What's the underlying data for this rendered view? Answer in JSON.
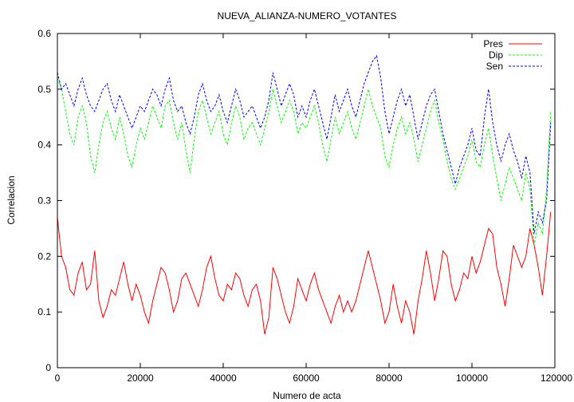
{
  "chart_data": {
    "type": "line",
    "title": "NUEVA_ALIANZA-NUMERO_VOTANTES",
    "xlabel": "Numero de acta",
    "ylabel": "Correlacion",
    "xlim": [
      0,
      120000
    ],
    "ylim": [
      0,
      0.6
    ],
    "xticks": [
      0,
      20000,
      40000,
      60000,
      80000,
      100000,
      120000
    ],
    "yticks": [
      0,
      0.1,
      0.2,
      0.3,
      0.4,
      0.5,
      0.6
    ],
    "xtick_labels": [
      "0",
      "20000",
      "40000",
      "60000",
      "80000",
      "100000",
      "120000"
    ],
    "ytick_labels": [
      "0",
      "0.1",
      "0.2",
      "0.3",
      "0.4",
      "0.5",
      "0.6"
    ],
    "grid": false,
    "legend_position": "top-right",
    "series": [
      {
        "name": "Pres",
        "color": "#ff0000",
        "dash": "solid",
        "x": [
          0,
          1000,
          2000,
          3000,
          4000,
          5000,
          6000,
          7000,
          8000,
          9000,
          10000,
          11000,
          12000,
          13000,
          14000,
          15000,
          16000,
          17000,
          18000,
          19000,
          20000,
          21000,
          22000,
          23000,
          24000,
          25000,
          26000,
          27000,
          28000,
          29000,
          30000,
          31000,
          32000,
          33000,
          34000,
          35000,
          36000,
          37000,
          38000,
          39000,
          40000,
          41000,
          42000,
          43000,
          44000,
          45000,
          46000,
          47000,
          48000,
          49000,
          50000,
          51000,
          52000,
          53000,
          54000,
          55000,
          56000,
          57000,
          58000,
          59000,
          60000,
          61000,
          62000,
          63000,
          64000,
          65000,
          66000,
          67000,
          68000,
          69000,
          70000,
          71000,
          72000,
          73000,
          74000,
          75000,
          76000,
          77000,
          78000,
          79000,
          80000,
          81000,
          82000,
          83000,
          84000,
          85000,
          86000,
          87000,
          88000,
          89000,
          90000,
          91000,
          92000,
          93000,
          94000,
          95000,
          96000,
          97000,
          98000,
          99000,
          100000,
          101000,
          102000,
          103000,
          104000,
          105000,
          106000,
          107000,
          108000,
          109000,
          110000,
          111000,
          112000,
          113000,
          114000,
          115000,
          116000,
          117000,
          118000,
          119000
        ],
        "y": [
          0.27,
          0.2,
          0.18,
          0.14,
          0.13,
          0.17,
          0.19,
          0.14,
          0.15,
          0.21,
          0.12,
          0.09,
          0.11,
          0.14,
          0.13,
          0.16,
          0.19,
          0.15,
          0.12,
          0.15,
          0.13,
          0.1,
          0.08,
          0.12,
          0.15,
          0.18,
          0.17,
          0.14,
          0.1,
          0.12,
          0.16,
          0.17,
          0.15,
          0.13,
          0.11,
          0.14,
          0.18,
          0.2,
          0.16,
          0.13,
          0.12,
          0.15,
          0.14,
          0.17,
          0.16,
          0.13,
          0.11,
          0.14,
          0.15,
          0.12,
          0.06,
          0.09,
          0.18,
          0.16,
          0.13,
          0.1,
          0.08,
          0.11,
          0.16,
          0.14,
          0.12,
          0.15,
          0.17,
          0.14,
          0.12,
          0.1,
          0.08,
          0.11,
          0.13,
          0.1,
          0.12,
          0.1,
          0.12,
          0.15,
          0.18,
          0.21,
          0.18,
          0.15,
          0.12,
          0.08,
          0.1,
          0.15,
          0.11,
          0.08,
          0.12,
          0.1,
          0.06,
          0.12,
          0.16,
          0.21,
          0.17,
          0.12,
          0.16,
          0.21,
          0.2,
          0.15,
          0.12,
          0.14,
          0.17,
          0.16,
          0.2,
          0.17,
          0.19,
          0.22,
          0.25,
          0.24,
          0.18,
          0.15,
          0.11,
          0.16,
          0.22,
          0.2,
          0.18,
          0.2,
          0.25,
          0.22,
          0.18,
          0.13,
          0.2,
          0.28
        ]
      },
      {
        "name": "Dip",
        "color": "#00ff00",
        "dash": "dashed",
        "x": [
          0,
          1000,
          2000,
          3000,
          4000,
          5000,
          6000,
          7000,
          8000,
          9000,
          10000,
          11000,
          12000,
          13000,
          14000,
          15000,
          16000,
          17000,
          18000,
          19000,
          20000,
          21000,
          22000,
          23000,
          24000,
          25000,
          26000,
          27000,
          28000,
          29000,
          30000,
          31000,
          32000,
          33000,
          34000,
          35000,
          36000,
          37000,
          38000,
          39000,
          40000,
          41000,
          42000,
          43000,
          44000,
          45000,
          46000,
          47000,
          48000,
          49000,
          50000,
          51000,
          52000,
          53000,
          54000,
          55000,
          56000,
          57000,
          58000,
          59000,
          60000,
          61000,
          62000,
          63000,
          64000,
          65000,
          66000,
          67000,
          68000,
          69000,
          70000,
          71000,
          72000,
          73000,
          74000,
          75000,
          76000,
          77000,
          78000,
          79000,
          80000,
          81000,
          82000,
          83000,
          84000,
          85000,
          86000,
          87000,
          88000,
          89000,
          90000,
          91000,
          92000,
          93000,
          94000,
          95000,
          96000,
          97000,
          98000,
          99000,
          100000,
          101000,
          102000,
          103000,
          104000,
          105000,
          106000,
          107000,
          108000,
          109000,
          110000,
          111000,
          112000,
          113000,
          114000,
          115000,
          116000,
          117000,
          118000,
          119000
        ],
        "y": [
          0.52,
          0.5,
          0.46,
          0.42,
          0.4,
          0.45,
          0.47,
          0.44,
          0.38,
          0.35,
          0.4,
          0.44,
          0.46,
          0.43,
          0.41,
          0.45,
          0.42,
          0.38,
          0.36,
          0.4,
          0.43,
          0.41,
          0.44,
          0.47,
          0.45,
          0.43,
          0.47,
          0.48,
          0.44,
          0.41,
          0.44,
          0.39,
          0.35,
          0.41,
          0.46,
          0.48,
          0.45,
          0.42,
          0.44,
          0.46,
          0.42,
          0.4,
          0.44,
          0.47,
          0.45,
          0.41,
          0.43,
          0.44,
          0.42,
          0.4,
          0.43,
          0.46,
          0.5,
          0.47,
          0.44,
          0.46,
          0.48,
          0.46,
          0.42,
          0.44,
          0.43,
          0.45,
          0.47,
          0.44,
          0.4,
          0.37,
          0.41,
          0.45,
          0.42,
          0.44,
          0.46,
          0.43,
          0.41,
          0.44,
          0.47,
          0.5,
          0.47,
          0.45,
          0.43,
          0.38,
          0.36,
          0.4,
          0.43,
          0.45,
          0.42,
          0.44,
          0.41,
          0.37,
          0.4,
          0.43,
          0.46,
          0.48,
          0.44,
          0.41,
          0.37,
          0.34,
          0.32,
          0.34,
          0.36,
          0.38,
          0.41,
          0.37,
          0.36,
          0.4,
          0.43,
          0.38,
          0.34,
          0.3,
          0.33,
          0.36,
          0.34,
          0.32,
          0.3,
          0.35,
          0.32,
          0.22,
          0.26,
          0.24,
          0.32,
          0.46
        ]
      },
      {
        "name": "Sen",
        "color": "#0000ff",
        "dash": "dashed",
        "x": [
          0,
          1000,
          2000,
          3000,
          4000,
          5000,
          6000,
          7000,
          8000,
          9000,
          10000,
          11000,
          12000,
          13000,
          14000,
          15000,
          16000,
          17000,
          18000,
          19000,
          20000,
          21000,
          22000,
          23000,
          24000,
          25000,
          26000,
          27000,
          28000,
          29000,
          30000,
          31000,
          32000,
          33000,
          34000,
          35000,
          36000,
          37000,
          38000,
          39000,
          40000,
          41000,
          42000,
          43000,
          44000,
          45000,
          46000,
          47000,
          48000,
          49000,
          50000,
          51000,
          52000,
          53000,
          54000,
          55000,
          56000,
          57000,
          58000,
          59000,
          60000,
          61000,
          62000,
          63000,
          64000,
          65000,
          66000,
          67000,
          68000,
          69000,
          70000,
          71000,
          72000,
          73000,
          74000,
          75000,
          76000,
          77000,
          78000,
          79000,
          80000,
          81000,
          82000,
          83000,
          84000,
          85000,
          86000,
          87000,
          88000,
          89000,
          90000,
          91000,
          92000,
          93000,
          94000,
          95000,
          96000,
          97000,
          98000,
          99000,
          100000,
          101000,
          102000,
          103000,
          104000,
          105000,
          106000,
          107000,
          108000,
          109000,
          110000,
          111000,
          112000,
          113000,
          114000,
          115000,
          116000,
          117000,
          118000,
          119000
        ],
        "y": [
          0.53,
          0.5,
          0.51,
          0.49,
          0.47,
          0.5,
          0.52,
          0.49,
          0.47,
          0.46,
          0.48,
          0.5,
          0.51,
          0.48,
          0.46,
          0.49,
          0.47,
          0.45,
          0.43,
          0.45,
          0.47,
          0.46,
          0.48,
          0.5,
          0.49,
          0.47,
          0.5,
          0.52,
          0.48,
          0.46,
          0.47,
          0.44,
          0.42,
          0.45,
          0.49,
          0.51,
          0.48,
          0.46,
          0.47,
          0.49,
          0.46,
          0.44,
          0.47,
          0.5,
          0.48,
          0.45,
          0.46,
          0.47,
          0.45,
          0.43,
          0.45,
          0.48,
          0.53,
          0.5,
          0.47,
          0.49,
          0.51,
          0.49,
          0.45,
          0.47,
          0.45,
          0.48,
          0.5,
          0.47,
          0.44,
          0.41,
          0.45,
          0.49,
          0.46,
          0.48,
          0.5,
          0.47,
          0.45,
          0.48,
          0.51,
          0.53,
          0.55,
          0.56,
          0.52,
          0.46,
          0.42,
          0.45,
          0.48,
          0.5,
          0.47,
          0.49,
          0.45,
          0.41,
          0.44,
          0.47,
          0.49,
          0.5,
          0.46,
          0.42,
          0.39,
          0.36,
          0.33,
          0.36,
          0.38,
          0.4,
          0.43,
          0.39,
          0.38,
          0.45,
          0.5,
          0.44,
          0.4,
          0.37,
          0.4,
          0.42,
          0.39,
          0.37,
          0.34,
          0.38,
          0.35,
          0.24,
          0.28,
          0.26,
          0.3,
          0.44
        ]
      }
    ]
  }
}
